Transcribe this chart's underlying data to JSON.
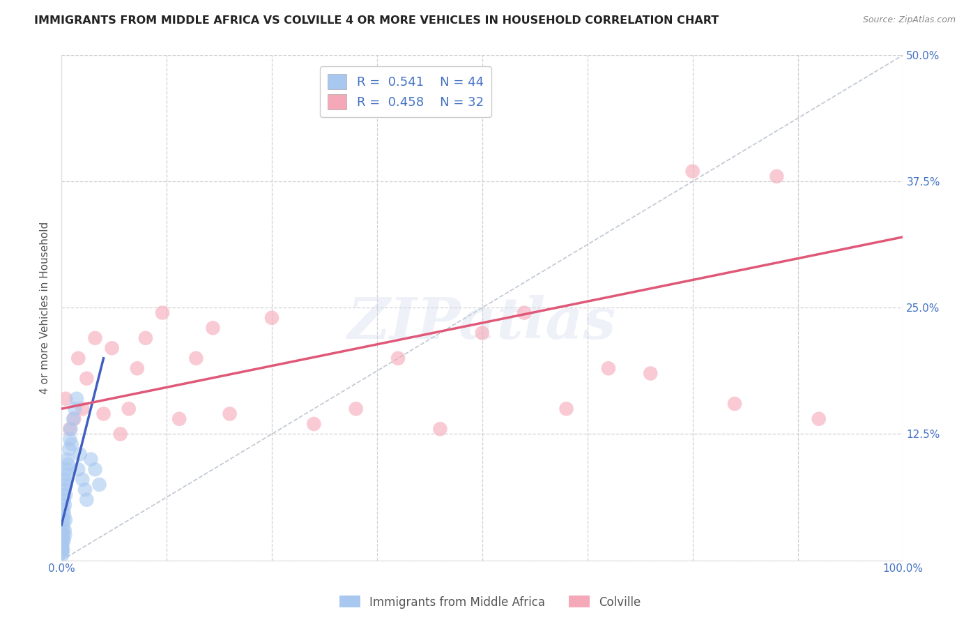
{
  "title": "IMMIGRANTS FROM MIDDLE AFRICA VS COLVILLE 4 OR MORE VEHICLES IN HOUSEHOLD CORRELATION CHART",
  "source": "Source: ZipAtlas.com",
  "ylabel": "4 or more Vehicles in Household",
  "xlim": [
    0.0,
    100.0
  ],
  "ylim": [
    0.0,
    50.0
  ],
  "xticks": [
    0.0,
    12.5,
    25.0,
    37.5,
    50.0,
    62.5,
    75.0,
    87.5,
    100.0
  ],
  "yticks": [
    0.0,
    12.5,
    25.0,
    37.5,
    50.0
  ],
  "blue_R": 0.541,
  "blue_N": 44,
  "pink_R": 0.458,
  "pink_N": 32,
  "blue_color": "#a8c8f0",
  "pink_color": "#f5a8b8",
  "blue_line_color": "#4060c0",
  "pink_line_color": "#e05878",
  "ref_line_color": "#b0b8c8",
  "legend_label_blue": "Immigrants from Middle Africa",
  "legend_label_pink": "Colville",
  "title_fontsize": 11.5,
  "ylabel_fontsize": 11,
  "tick_fontsize": 11,
  "tick_color": "#4472c4",
  "watermark": "ZIPatlas",
  "background_color": "#ffffff",
  "blue_scatter_x": [
    0.05,
    0.08,
    0.1,
    0.12,
    0.13,
    0.15,
    0.18,
    0.2,
    0.22,
    0.25,
    0.28,
    0.3,
    0.32,
    0.35,
    0.38,
    0.4,
    0.42,
    0.45,
    0.48,
    0.5,
    0.55,
    0.6,
    0.65,
    0.7,
    0.8,
    0.9,
    1.0,
    1.1,
    1.2,
    1.4,
    1.6,
    1.8,
    2.0,
    2.2,
    2.5,
    2.8,
    3.0,
    3.5,
    4.0,
    4.5,
    0.06,
    0.07,
    0.09,
    0.11
  ],
  "blue_scatter_y": [
    1.0,
    0.5,
    2.0,
    1.5,
    3.0,
    2.5,
    1.0,
    4.0,
    3.5,
    5.0,
    2.0,
    6.0,
    4.5,
    7.0,
    3.0,
    5.5,
    2.5,
    8.0,
    4.0,
    6.5,
    7.5,
    9.0,
    8.5,
    10.0,
    9.5,
    11.0,
    12.0,
    13.0,
    11.5,
    14.0,
    15.0,
    16.0,
    9.0,
    10.5,
    8.0,
    7.0,
    6.0,
    10.0,
    9.0,
    7.5,
    0.8,
    1.2,
    1.8,
    2.2
  ],
  "pink_scatter_x": [
    0.5,
    1.0,
    1.5,
    2.0,
    2.5,
    3.0,
    4.0,
    5.0,
    6.0,
    7.0,
    8.0,
    9.0,
    10.0,
    12.0,
    14.0,
    16.0,
    18.0,
    20.0,
    25.0,
    30.0,
    35.0,
    40.0,
    45.0,
    50.0,
    55.0,
    60.0,
    65.0,
    70.0,
    75.0,
    80.0,
    85.0,
    90.0
  ],
  "pink_scatter_y": [
    16.0,
    13.0,
    14.0,
    20.0,
    15.0,
    18.0,
    22.0,
    14.5,
    21.0,
    12.5,
    15.0,
    19.0,
    22.0,
    24.5,
    14.0,
    20.0,
    23.0,
    14.5,
    24.0,
    13.5,
    15.0,
    20.0,
    13.0,
    22.5,
    24.5,
    15.0,
    19.0,
    18.5,
    38.5,
    15.5,
    38.0,
    14.0
  ],
  "pink_trend_start_y": 15.0,
  "pink_trend_end_y": 32.0,
  "blue_trend_start_y": 3.5,
  "blue_trend_end_x": 5.0,
  "blue_trend_end_y": 20.0
}
